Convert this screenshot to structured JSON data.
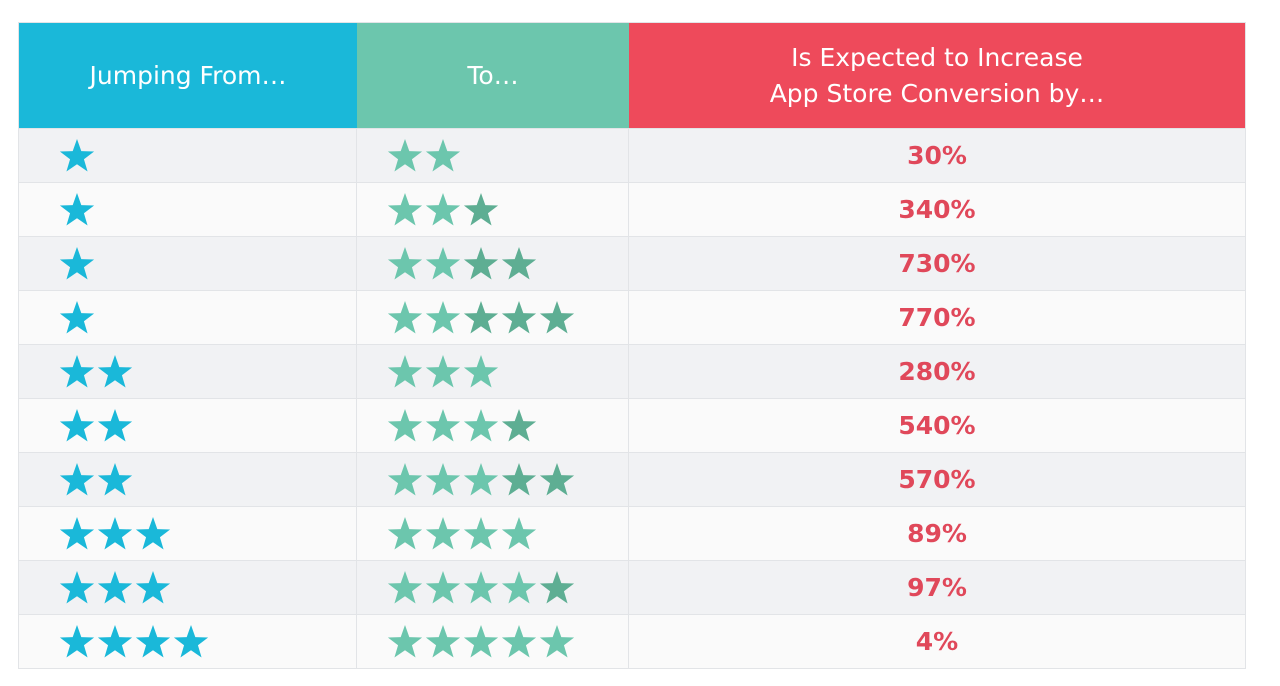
{
  "header": {
    "columns": [
      "Jumping From…",
      "To…",
      "Is Expected to Increase\nApp Store Conversion by…"
    ]
  },
  "table": {
    "rows": [
      {
        "from": 1,
        "to": 2,
        "increase": "30%"
      },
      {
        "from": 1,
        "to": 3,
        "increase": "340%"
      },
      {
        "from": 1,
        "to": 4,
        "increase": "730%"
      },
      {
        "from": 1,
        "to": 5,
        "increase": "770%"
      },
      {
        "from": 2,
        "to": 3,
        "increase": "280%"
      },
      {
        "from": 2,
        "to": 4,
        "increase": "540%"
      },
      {
        "from": 2,
        "to": 5,
        "increase": "570%"
      },
      {
        "from": 3,
        "to": 4,
        "increase": "89%"
      },
      {
        "from": 3,
        "to": 5,
        "increase": "97%"
      },
      {
        "from": 4,
        "to": 5,
        "increase": "4%"
      }
    ]
  }
}
